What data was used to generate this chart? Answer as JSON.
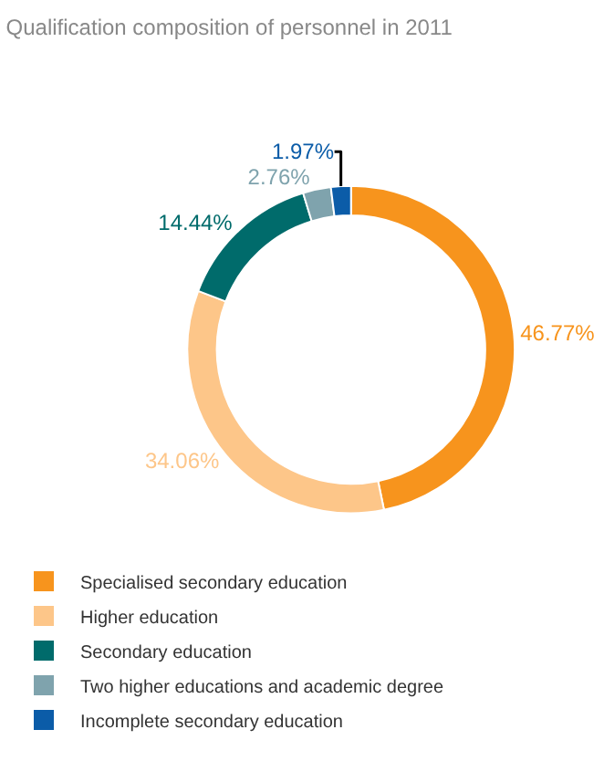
{
  "chart_data": {
    "type": "donut",
    "title": "Qualification composition of personnel in 2011",
    "categories": [
      "Specialised secondary education",
      "Higher education",
      "Secondary education",
      "Two higher educations and academic degree",
      "Incomplete secondary education"
    ],
    "values": [
      46.77,
      34.06,
      14.44,
      2.76,
      1.97
    ],
    "colors": [
      "#f7941d",
      "#fdc689",
      "#006b6b",
      "#7fa3ad",
      "#0b5ca8"
    ],
    "value_labels": [
      "46.77%",
      "34.06%",
      "14.44%",
      "2.76%",
      "1.97%"
    ],
    "legend": "bottom left"
  }
}
